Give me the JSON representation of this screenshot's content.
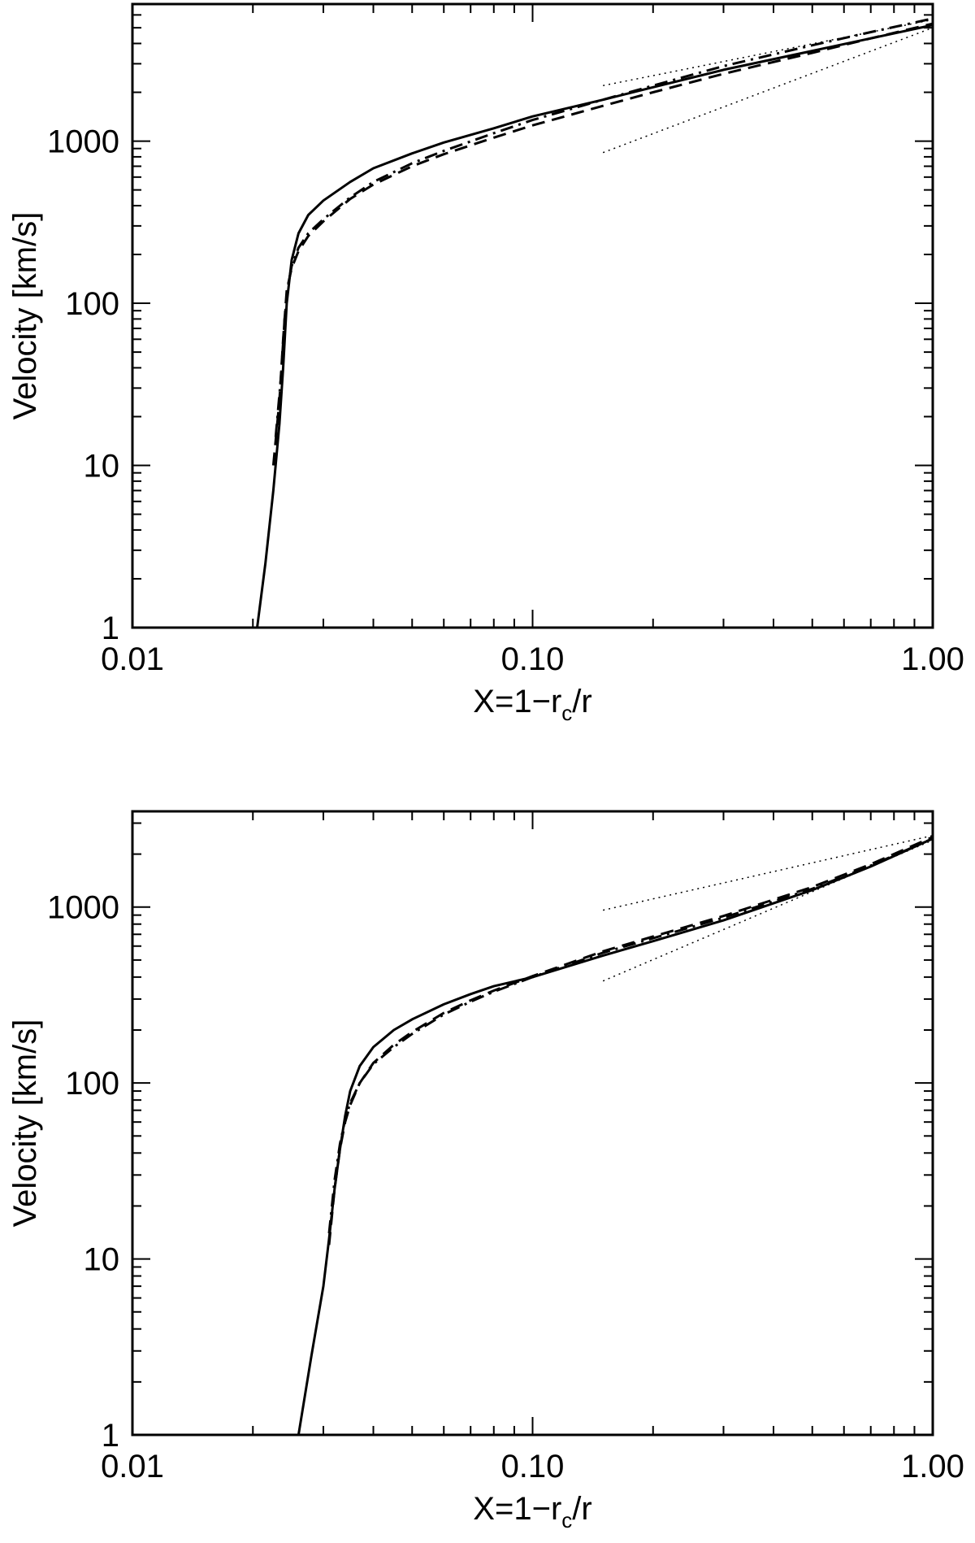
{
  "chart_data": [
    {
      "type": "line",
      "xlabel": {
        "main": "X=1−r",
        "sub": "c",
        "tail": "/r"
      },
      "ylabel": "Velocity [km/s]",
      "xscale": "log",
      "yscale": "log",
      "xlim": [
        0.01,
        1.0
      ],
      "ylim": [
        1,
        7000
      ],
      "xticks": [
        {
          "value": 0.01,
          "label": "0.01"
        },
        {
          "value": 0.1,
          "label": "0.10"
        },
        {
          "value": 1.0,
          "label": "1.00"
        }
      ],
      "yticks": [
        {
          "value": 1,
          "label": "1"
        },
        {
          "value": 10,
          "label": "10"
        },
        {
          "value": 100,
          "label": "100"
        },
        {
          "value": 1000,
          "label": "1000"
        }
      ],
      "series": [
        {
          "style": "solid",
          "x": [
            0.0205,
            0.0215,
            0.0225,
            0.0233,
            0.0238,
            0.0243,
            0.025,
            0.026,
            0.0275,
            0.03,
            0.035,
            0.04,
            0.05,
            0.06,
            0.08,
            0.1,
            0.15,
            0.2,
            0.3,
            0.5,
            0.7,
            1.0
          ],
          "y": [
            1,
            2.5,
            7,
            18,
            40,
            100,
            185,
            270,
            350,
            430,
            560,
            680,
            840,
            980,
            1200,
            1420,
            1800,
            2150,
            2750,
            3600,
            4300,
            5200
          ]
        },
        {
          "style": "dashed",
          "x": [
            0.0225,
            0.0233,
            0.0238,
            0.0243,
            0.025,
            0.026,
            0.0275,
            0.03,
            0.035,
            0.04,
            0.05,
            0.06,
            0.08,
            0.1,
            0.15,
            0.2,
            0.3,
            0.5,
            0.7,
            1.0
          ],
          "y": [
            10,
            25,
            60,
            120,
            165,
            210,
            260,
            320,
            440,
            540,
            700,
            830,
            1050,
            1250,
            1650,
            2000,
            2600,
            3500,
            4300,
            5300
          ]
        },
        {
          "style": "dashdot",
          "x": [
            0.0228,
            0.0235,
            0.024,
            0.0245,
            0.025,
            0.026,
            0.0275,
            0.03,
            0.035,
            0.04,
            0.05,
            0.06,
            0.08,
            0.1,
            0.15,
            0.2,
            0.3,
            0.5,
            0.7,
            1.0
          ],
          "y": [
            15,
            35,
            80,
            130,
            170,
            220,
            270,
            330,
            450,
            560,
            730,
            870,
            1120,
            1350,
            1800,
            2200,
            2900,
            3900,
            4700,
            5700
          ]
        },
        {
          "style": "dotted",
          "x": [
            0.15,
            1.0
          ],
          "y": [
            850,
            5000
          ]
        },
        {
          "style": "dotted",
          "x": [
            0.15,
            1.0
          ],
          "y": [
            2200,
            5600
          ]
        }
      ]
    },
    {
      "type": "line",
      "xlabel": {
        "main": "X=1−r",
        "sub": "c",
        "tail": "/r"
      },
      "ylabel": "Velocity [km/s]",
      "xscale": "log",
      "yscale": "log",
      "xlim": [
        0.01,
        1.0
      ],
      "ylim": [
        1,
        3500
      ],
      "xticks": [
        {
          "value": 0.01,
          "label": "0.01"
        },
        {
          "value": 0.1,
          "label": "0.10"
        },
        {
          "value": 1.0,
          "label": "1.00"
        }
      ],
      "yticks": [
        {
          "value": 1,
          "label": "1"
        },
        {
          "value": 10,
          "label": "10"
        },
        {
          "value": 100,
          "label": "100"
        },
        {
          "value": 1000,
          "label": "1000"
        }
      ],
      "series": [
        {
          "style": "solid",
          "x": [
            0.026,
            0.028,
            0.03,
            0.031,
            0.032,
            0.033,
            0.034,
            0.035,
            0.037,
            0.04,
            0.045,
            0.05,
            0.06,
            0.07,
            0.08,
            0.1,
            0.15,
            0.2,
            0.3,
            0.5,
            0.7,
            1.0
          ],
          "y": [
            1,
            2.8,
            7,
            13,
            25,
            42,
            65,
            90,
            125,
            160,
            200,
            230,
            280,
            320,
            355,
            400,
            530,
            640,
            840,
            1250,
            1700,
            2450
          ]
        },
        {
          "style": "dashed",
          "x": [
            0.031,
            0.032,
            0.033,
            0.034,
            0.035,
            0.037,
            0.04,
            0.045,
            0.05,
            0.06,
            0.07,
            0.08,
            0.1,
            0.15,
            0.2,
            0.3,
            0.5,
            0.7,
            1.0
          ],
          "y": [
            12,
            25,
            42,
            60,
            75,
            100,
            130,
            165,
            195,
            250,
            295,
            335,
            405,
            560,
            680,
            890,
            1300,
            1750,
            2500
          ]
        },
        {
          "style": "dashdot",
          "x": [
            0.031,
            0.032,
            0.033,
            0.034,
            0.035,
            0.037,
            0.04,
            0.045,
            0.05,
            0.06,
            0.07,
            0.08,
            0.1,
            0.15,
            0.2,
            0.3,
            0.5,
            0.7,
            1.0
          ],
          "y": [
            14,
            28,
            45,
            62,
            77,
            100,
            128,
            160,
            190,
            245,
            290,
            330,
            400,
            550,
            665,
            870,
            1270,
            1720,
            2450
          ]
        },
        {
          "style": "dotted",
          "x": [
            0.15,
            1.0
          ],
          "y": [
            380,
            2400
          ]
        },
        {
          "style": "dotted",
          "x": [
            0.15,
            1.0
          ],
          "y": [
            960,
            2550
          ]
        }
      ]
    }
  ]
}
